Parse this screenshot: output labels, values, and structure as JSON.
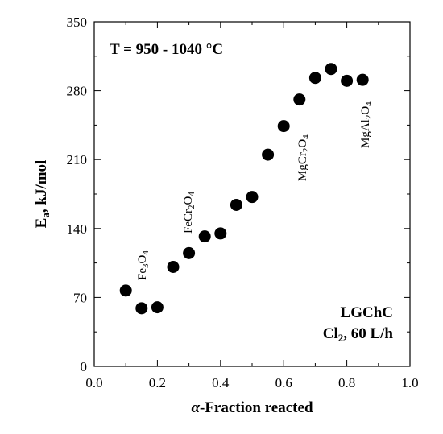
{
  "chart_data": {
    "type": "scatter",
    "title": "",
    "xlabel_symbol": "α",
    "xlabel_rest": "-Fraction reacted",
    "ylabel_main": "E",
    "ylabel_sub": "a",
    "ylabel_rest": ", kJ/mol",
    "xlim": [
      0.0,
      1.0
    ],
    "ylim": [
      0,
      350
    ],
    "x_ticks": [
      "0.0",
      "0.2",
      "0.4",
      "0.6",
      "0.8",
      "1.0"
    ],
    "y_ticks": [
      "0",
      "70",
      "140",
      "210",
      "280",
      "350"
    ],
    "grid": false,
    "marker_color": "#000000",
    "points": [
      {
        "x": 0.1,
        "y": 77
      },
      {
        "x": 0.15,
        "y": 59
      },
      {
        "x": 0.2,
        "y": 60
      },
      {
        "x": 0.25,
        "y": 101
      },
      {
        "x": 0.3,
        "y": 115
      },
      {
        "x": 0.35,
        "y": 132
      },
      {
        "x": 0.4,
        "y": 135
      },
      {
        "x": 0.45,
        "y": 164
      },
      {
        "x": 0.5,
        "y": 172
      },
      {
        "x": 0.55,
        "y": 215
      },
      {
        "x": 0.6,
        "y": 244
      },
      {
        "x": 0.65,
        "y": 271
      },
      {
        "x": 0.7,
        "y": 293
      },
      {
        "x": 0.75,
        "y": 302
      },
      {
        "x": 0.8,
        "y": 290
      },
      {
        "x": 0.85,
        "y": 291
      }
    ],
    "annotations": {
      "temperature": "T = 950 - 1040 °C",
      "sample": "LGChC",
      "gas_formula": "Cl",
      "gas_subscript": "2",
      "gas_rate": ", 60 L/h",
      "phase_labels": [
        {
          "parts": [
            "Fe",
            "3",
            "O",
            "4"
          ]
        },
        {
          "parts": [
            "FeCr",
            "2",
            "O",
            "4"
          ]
        },
        {
          "parts": [
            "MgCr",
            "2",
            "O",
            "4"
          ]
        },
        {
          "parts": [
            "MgAl",
            "2",
            "O",
            "4"
          ]
        }
      ]
    }
  }
}
